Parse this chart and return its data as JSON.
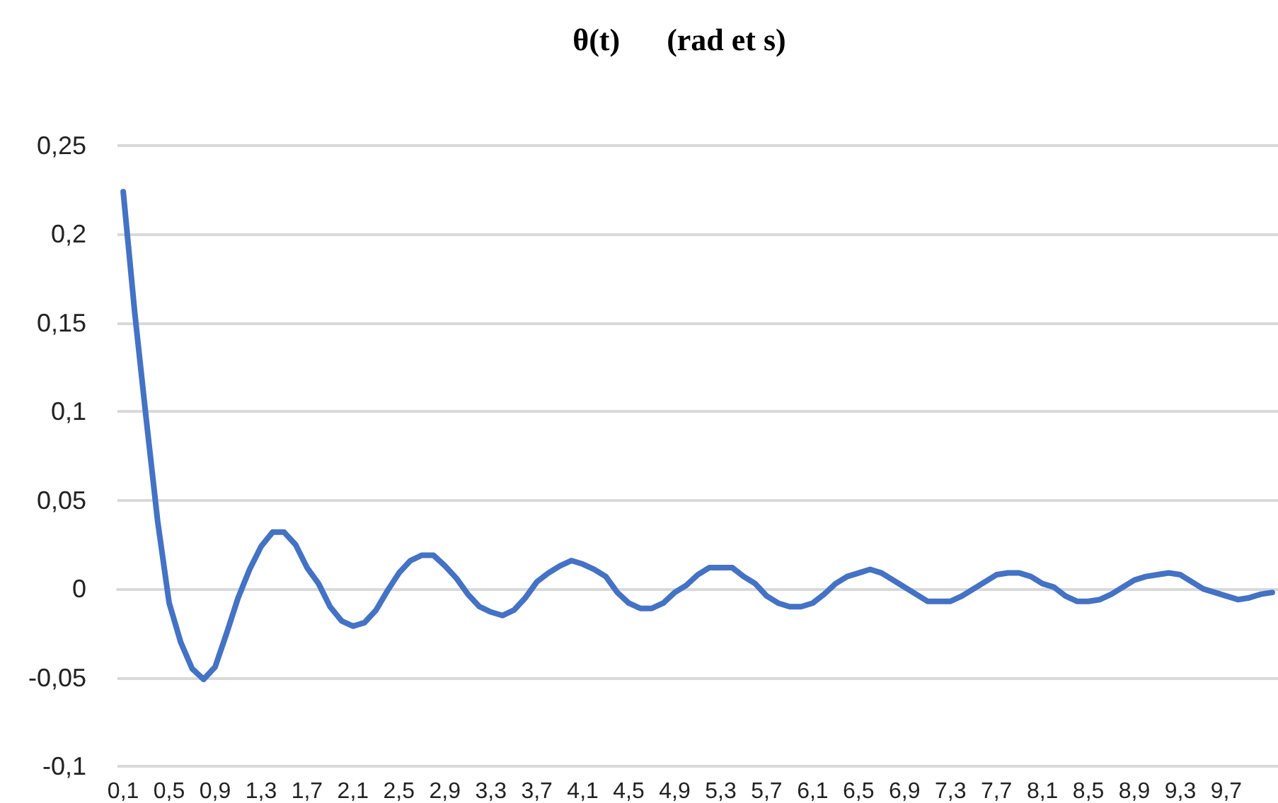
{
  "chart_data": {
    "type": "line",
    "title": "θ(t)      (rad et s)",
    "categories": [
      "0,1",
      null,
      null,
      null,
      "0,5",
      null,
      null,
      null,
      "0,9",
      null,
      null,
      null,
      "1,3",
      null,
      null,
      null,
      "1,7",
      null,
      null,
      null,
      "2,1",
      null,
      null,
      null,
      "2,5",
      null,
      null,
      null,
      "2,9",
      null,
      null,
      null,
      "3,3",
      null,
      null,
      null,
      "3,7",
      null,
      null,
      null,
      "4,1",
      null,
      null,
      null,
      "4,5",
      null,
      null,
      null,
      "4,9",
      null,
      null,
      null,
      "5,3",
      null,
      null,
      null,
      "5,7",
      null,
      null,
      null,
      "6,1",
      null,
      null,
      null,
      "6,5",
      null,
      null,
      null,
      "6,9",
      null,
      null,
      null,
      "7,3",
      null,
      null,
      null,
      "7,7",
      null,
      null,
      null,
      "8,1",
      null,
      null,
      null,
      "8,5",
      null,
      null,
      null,
      "8,9",
      null,
      null,
      null,
      "9,3",
      null,
      null,
      null,
      "9,7",
      null,
      null,
      null,
      null
    ],
    "series": [
      {
        "color": "#4472c4",
        "values": [
          0.224,
          0.156,
          0.096,
          0.038,
          -0.008,
          -0.03,
          -0.045,
          -0.051,
          -0.044,
          -0.025,
          -0.005,
          0.011,
          0.024,
          0.032,
          0.032,
          0.025,
          0.012,
          0.003,
          -0.01,
          -0.018,
          -0.021,
          -0.019,
          -0.012,
          -0.001,
          0.009,
          0.016,
          0.019,
          0.019,
          0.013,
          0.006,
          -0.003,
          -0.01,
          -0.013,
          -0.015,
          -0.012,
          -0.005,
          0.004,
          0.009,
          0.013,
          0.016,
          0.014,
          0.011,
          0.007,
          -0.002,
          -0.008,
          -0.011,
          -0.011,
          -0.008,
          -0.002,
          0.002,
          0.008,
          0.012,
          0.012,
          0.012,
          0.007,
          0.003,
          -0.004,
          -0.008,
          -0.01,
          -0.01,
          -0.008,
          -0.003,
          0.003,
          0.007,
          0.009,
          0.011,
          0.009,
          0.005,
          0.001,
          -0.003,
          -0.007,
          -0.007,
          -0.007,
          -0.004,
          0,
          0.004,
          0.008,
          0.009,
          0.009,
          0.007,
          0.003,
          0.001,
          -0.004,
          -0.007,
          -0.007,
          -0.006,
          -0.003,
          0.001,
          0.005,
          0.007,
          0.008,
          0.009,
          0.008,
          0.004,
          0,
          -0.002,
          -0.004,
          -0.006,
          -0.005,
          -0.003,
          -0.002
        ]
      }
    ],
    "ylim": [
      -0.1,
      0.25
    ],
    "yticks": [
      {
        "value": -0.1,
        "label": "-0,1"
      },
      {
        "value": -0.05,
        "label": "-0,05"
      },
      0,
      {
        "value": 0.05,
        "label": "0,05"
      },
      {
        "value": 0.1,
        "label": "0,1"
      },
      {
        "value": 0.15,
        "label": "0,15"
      },
      {
        "value": 0.2,
        "label": "0,2"
      },
      {
        "value": 0.25,
        "label": "0,25"
      }
    ],
    "grid": "y",
    "marker": "none",
    "line_style": "solid"
  }
}
